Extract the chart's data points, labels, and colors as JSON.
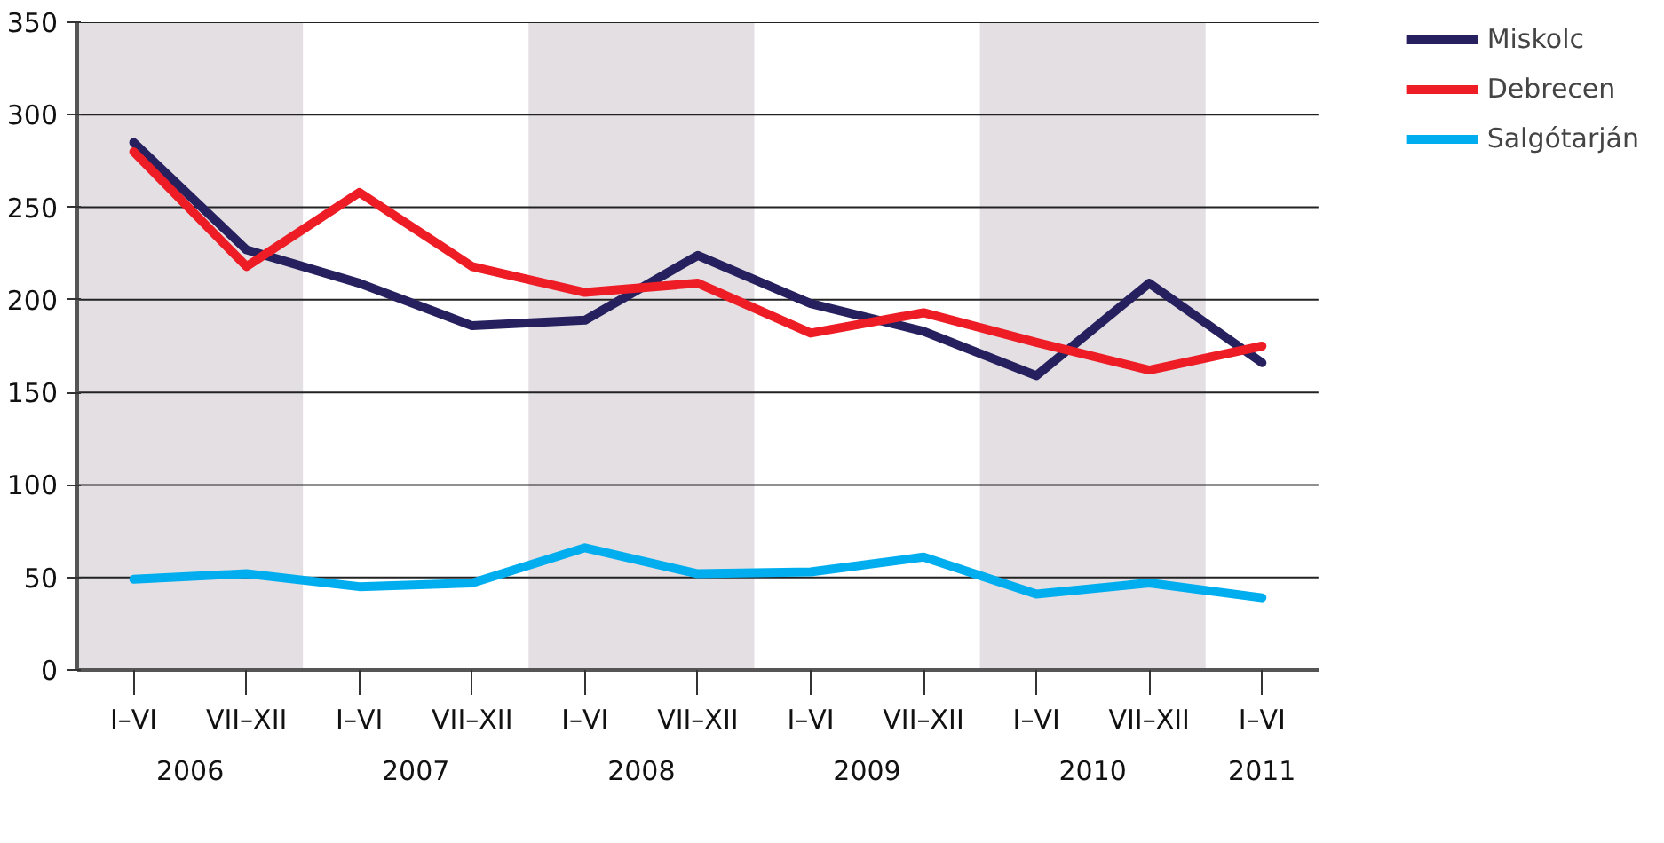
{
  "chart_data": {
    "type": "line",
    "categories": [
      "I–VI",
      "VII–XII",
      "I–VI",
      "VII–XII",
      "I–VI",
      "VII–XII",
      "I–VI",
      "VII–XII",
      "I–VI",
      "VII–XII",
      "I–VI"
    ],
    "series": [
      {
        "name": "Miskolc",
        "color": "#26215e",
        "values": [
          285,
          227,
          209,
          186,
          189,
          224,
          198,
          183,
          159,
          209,
          166
        ]
      },
      {
        "name": "Debrecen",
        "color": "#ee1c25",
        "values": [
          280,
          218,
          258,
          218,
          204,
          209,
          182,
          193,
          177,
          162,
          175
        ]
      },
      {
        "name": "Salgótarján",
        "color": "#00aeef",
        "values": [
          49,
          52,
          45,
          47,
          66,
          52,
          53,
          61,
          41,
          47,
          39
        ]
      }
    ],
    "annotations": [
      "2006",
      "2007",
      "2008",
      "2009",
      "2010",
      "2011"
    ],
    "ylim": [
      0,
      350
    ],
    "yticks": [
      0,
      50,
      100,
      150,
      200,
      250,
      300,
      350
    ],
    "grid": "y",
    "legend": "top right",
    "line_style": "solid"
  }
}
